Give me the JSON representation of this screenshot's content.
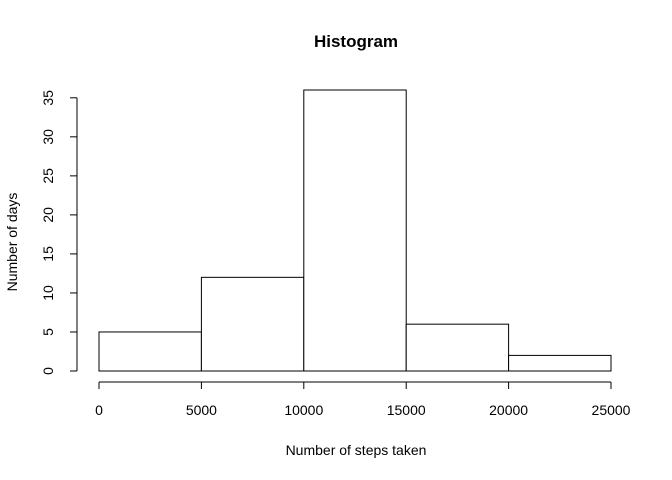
{
  "chart_data": {
    "type": "bar",
    "title": "Histogram",
    "xlabel": "Number of steps taken",
    "ylabel": "Number of days",
    "bins": [
      {
        "from": 0,
        "to": 5000,
        "count": 5
      },
      {
        "from": 5000,
        "to": 10000,
        "count": 12
      },
      {
        "from": 10000,
        "to": 15000,
        "count": 36
      },
      {
        "from": 15000,
        "to": 20000,
        "count": 6
      },
      {
        "from": 20000,
        "to": 25000,
        "count": 2
      }
    ],
    "xlim": [
      0,
      25000
    ],
    "ylim": [
      0,
      36
    ],
    "x_ticks": [
      0,
      5000,
      10000,
      15000,
      20000,
      25000
    ],
    "y_ticks": [
      0,
      5,
      10,
      15,
      20,
      25,
      30,
      35
    ],
    "grid": false,
    "colors": {
      "bar_fill": "#ffffff",
      "bar_stroke": "#000000"
    }
  }
}
